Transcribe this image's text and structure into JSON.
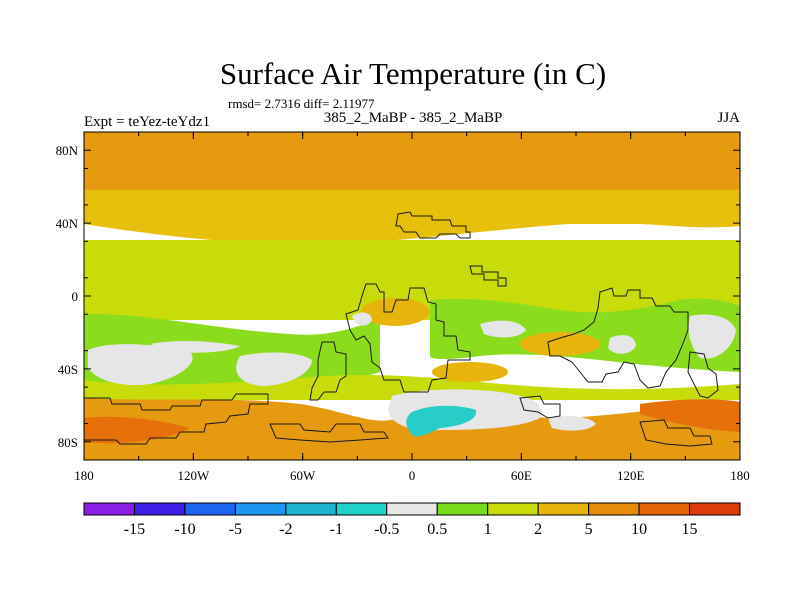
{
  "chart_data": {
    "type": "heatmap",
    "title": "Surface Air Temperature (in C)",
    "stats": "rmsd= 2.7316 diff= 2.11977",
    "subtitle": "385_2_MaBP - 385_2_MaBP",
    "left_label": "Expt = teYez-teYdz1",
    "right_label": "JJA",
    "x_ticks": [
      "180",
      "120W",
      "60W",
      "0",
      "60E",
      "120E",
      "180"
    ],
    "x_tick_values": [
      -180,
      -120,
      -60,
      0,
      60,
      120,
      180
    ],
    "y_ticks": [
      "80N",
      "40N",
      "0",
      "40S",
      "80S"
    ],
    "y_tick_values": [
      80,
      40,
      0,
      -40,
      -80
    ],
    "xlim": [
      -180,
      180
    ],
    "ylim": [
      -90,
      90
    ],
    "colorbar": {
      "labels": [
        "-15",
        "-10",
        "-5",
        "-2",
        "-1",
        "-0.5",
        "0.5",
        "1",
        "2",
        "5",
        "10",
        "15"
      ],
      "colors": [
        "#8b1ee6",
        "#3c1ee6",
        "#1e64f0",
        "#1e96f0",
        "#1eb4d2",
        "#1ed2c8",
        "#e6e6e6",
        "#78dc1e",
        "#c8dc0a",
        "#e6b40a",
        "#e68c0a",
        "#e6640a",
        "#dc3c0a"
      ]
    },
    "zonal_bands": [
      {
        "lat": [
          50,
          90
        ],
        "level": "5-10"
      },
      {
        "lat": [
          30,
          50
        ],
        "level": "2-5"
      },
      {
        "lat": [
          -10,
          30
        ],
        "level": "1-2"
      },
      {
        "lat": [
          -20,
          -10
        ],
        "level": "0.5-1"
      },
      {
        "lat": [
          -55,
          -20
        ],
        "level": "0.5-1"
      },
      {
        "lat": [
          -90,
          -55
        ],
        "level": "5-10"
      }
    ],
    "cold_patches": [
      {
        "lon": -155,
        "lat": -35,
        "level": "-0.5-0.5"
      },
      {
        "lon": -88,
        "lat": -37,
        "level": "-0.5-0.5"
      },
      {
        "lon": -25,
        "lat": -14,
        "level": "-0.5-0.5"
      },
      {
        "lon": 43,
        "lat": -67,
        "level": "-0.5-0.5"
      },
      {
        "lon": 30,
        "lat": -71,
        "level": "-2--1"
      },
      {
        "lon": 165,
        "lat": -20,
        "level": "-0.5-0.5"
      },
      {
        "lon": 40,
        "lat": -22,
        "level": "-0.5-0.5"
      }
    ]
  }
}
